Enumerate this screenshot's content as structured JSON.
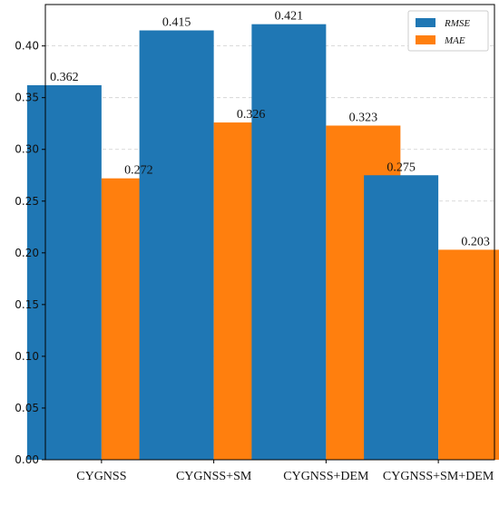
{
  "chart_data": {
    "type": "bar",
    "categories": [
      "CYGNSS",
      "CYGNSS+SM",
      "CYGNSS+DEM",
      "CYGNSS+SM+DEM"
    ],
    "series": [
      {
        "name": "RMSE",
        "values": [
          0.362,
          0.415,
          0.421,
          0.275
        ],
        "labels": [
          "0.362",
          "0.415",
          "0.421",
          "0.275"
        ],
        "color": "#1f77b4"
      },
      {
        "name": "MAE",
        "values": [
          0.272,
          0.326,
          0.323,
          0.203
        ],
        "labels": [
          "0.272",
          "0.326",
          "0.323",
          "0.203"
        ],
        "color": "#ff7f0e"
      }
    ],
    "title": "",
    "xlabel": "",
    "ylabel": "",
    "ylim": [
      0,
      0.44
    ],
    "yticks": [
      0.0,
      0.05,
      0.1,
      0.15,
      0.2,
      0.25,
      0.3,
      0.35,
      0.4
    ],
    "ytick_labels": [
      "0.00",
      "0.05",
      "0.10",
      "0.15",
      "0.20",
      "0.25",
      "0.30",
      "0.35",
      "0.40"
    ],
    "grid": true,
    "legend_position": "top-right"
  }
}
